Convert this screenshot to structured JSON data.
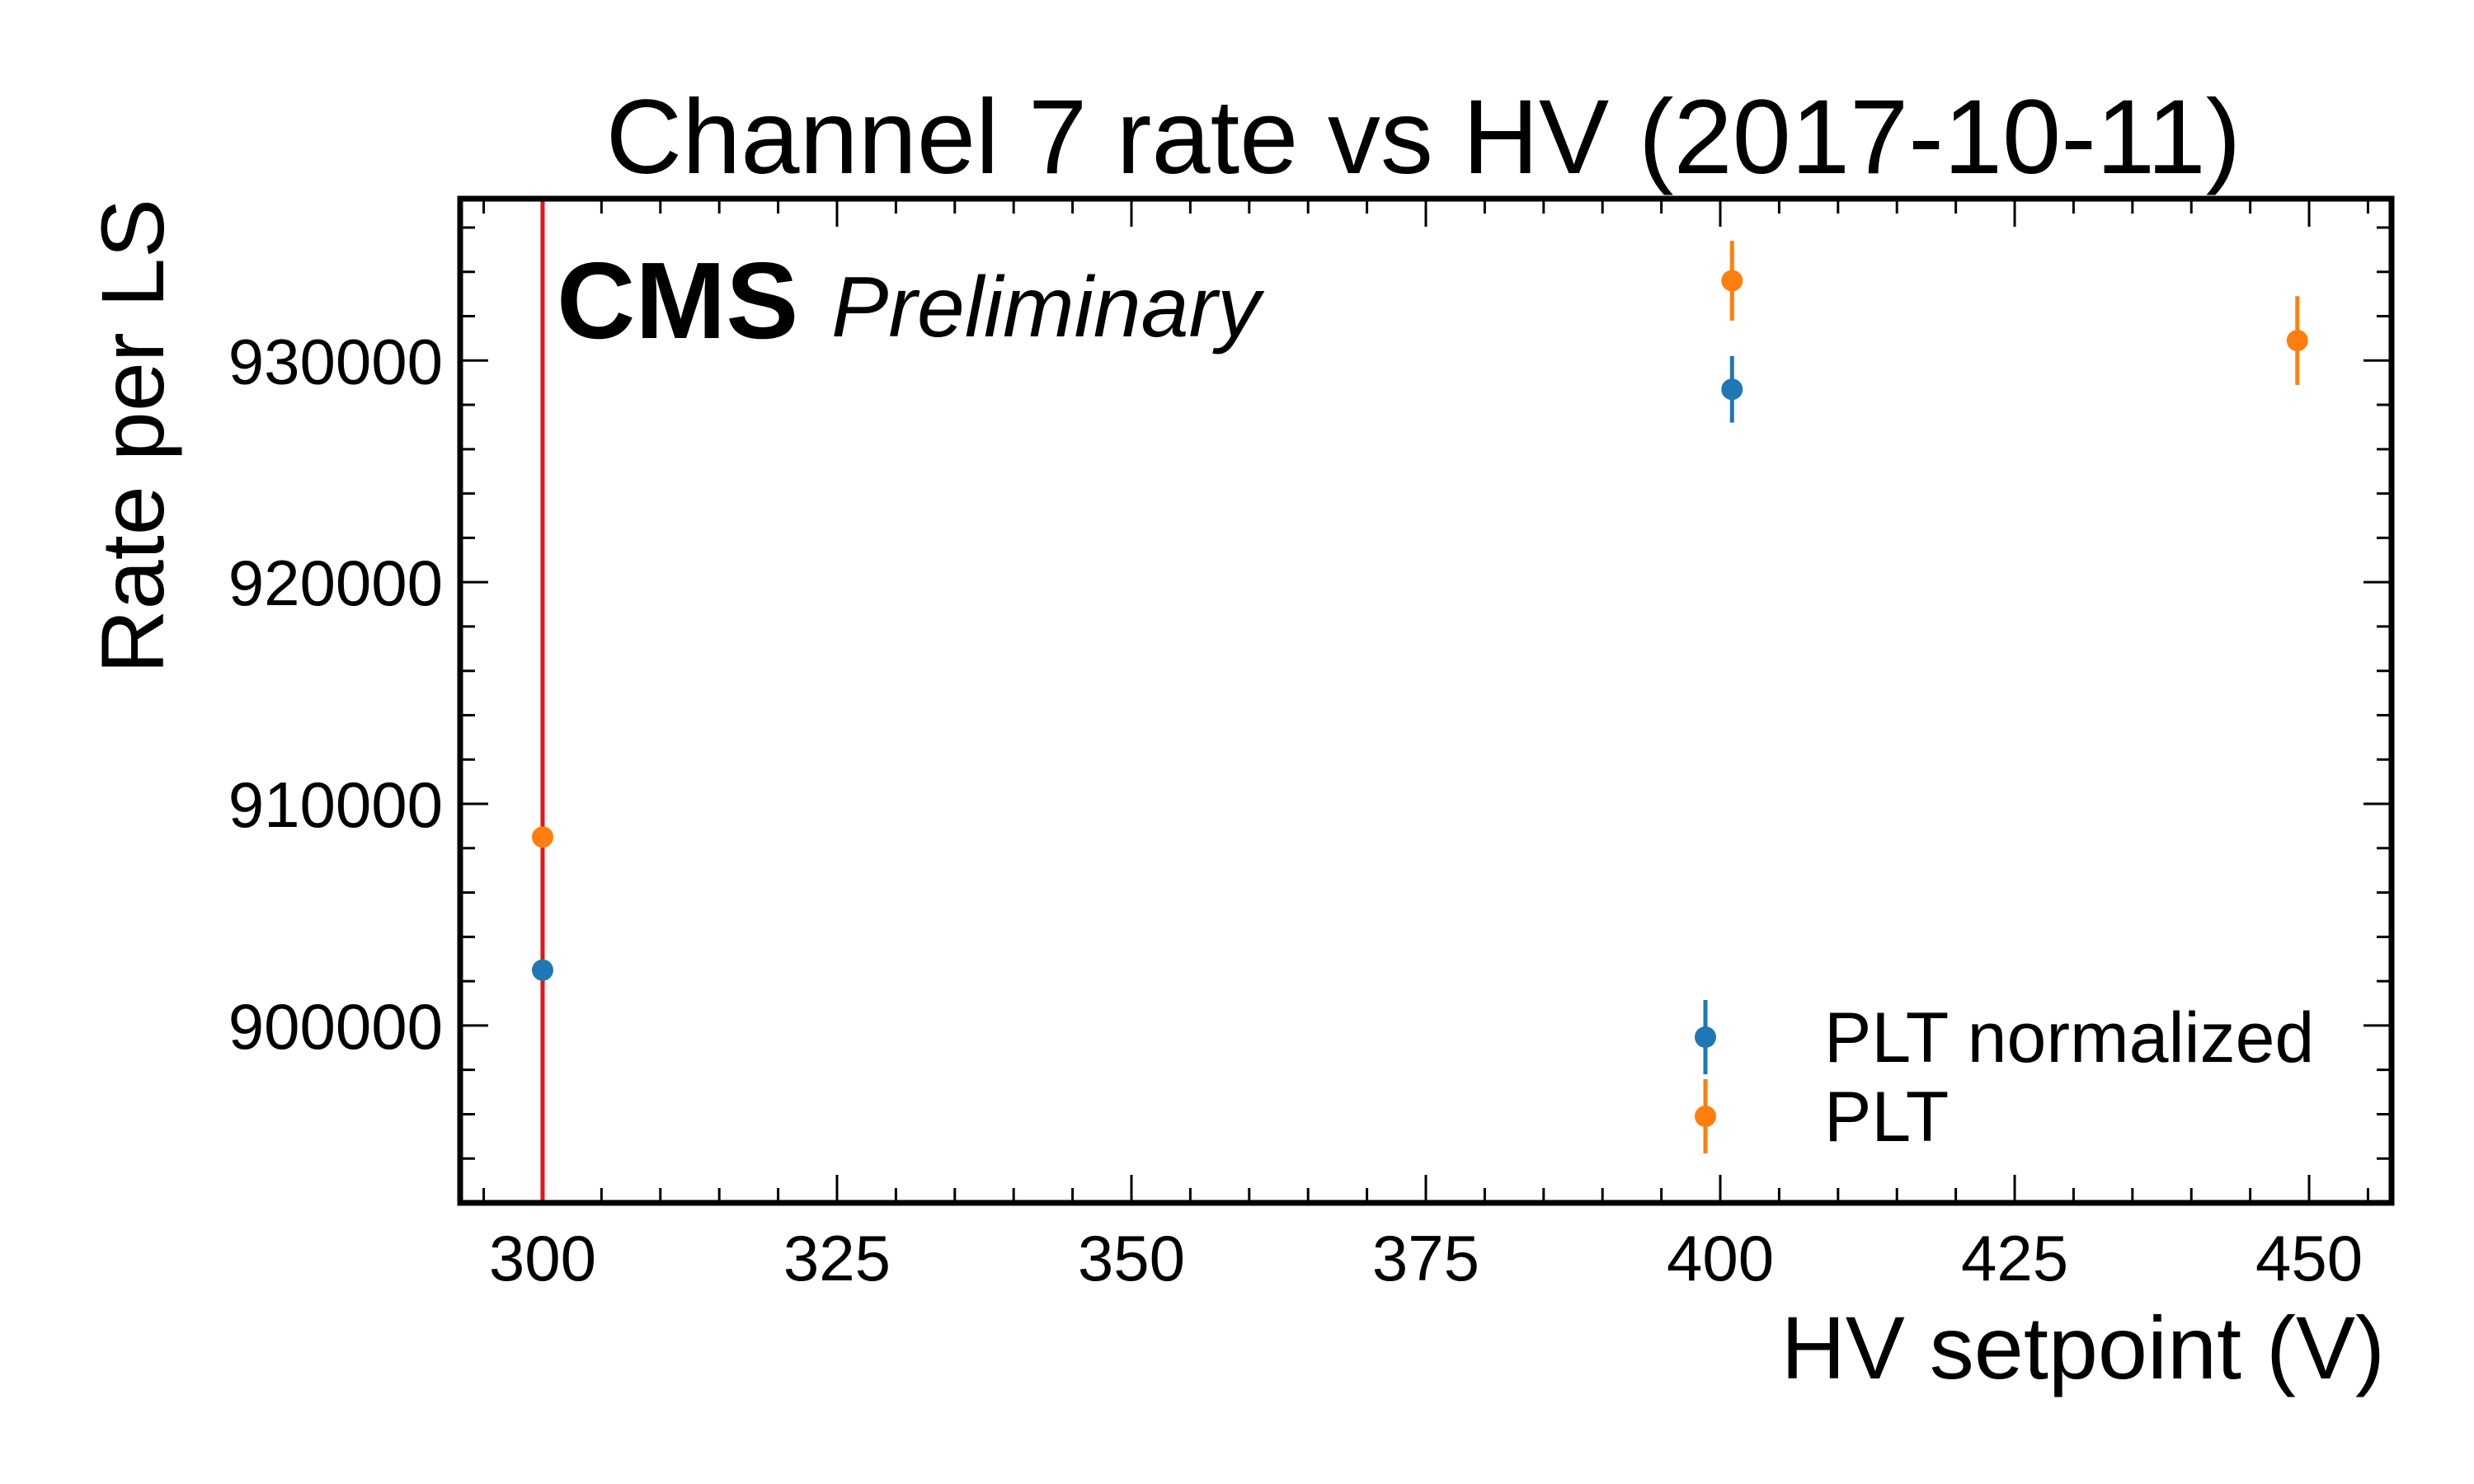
{
  "chart_data": {
    "type": "scatter",
    "title": "Channel 7 rate vs HV (2017-10-11)",
    "xlabel": "HV setpoint (V)",
    "ylabel": "Rate per LS",
    "xlim": [
      293,
      457
    ],
    "ylim": [
      892000,
      937300
    ],
    "xticks": [
      300,
      325,
      350,
      375,
      400,
      425,
      450
    ],
    "yticks": [
      900000,
      910000,
      920000,
      930000
    ],
    "x_minor_step": 5,
    "y_minor_step": 2000,
    "watermark": {
      "experiment": "CMS",
      "status": "Preliminary"
    },
    "legend_position": "lower-right",
    "vline": {
      "x": 300,
      "color": "#e8141b"
    },
    "series": [
      {
        "name": "PLT normalized",
        "color": "#1f77b4",
        "points": [
          {
            "x": 300,
            "y": 902500,
            "err": 0
          },
          {
            "x": 401,
            "y": 928700,
            "err": 1500
          }
        ]
      },
      {
        "name": "PLT",
        "color": "#ff7f0e",
        "points": [
          {
            "x": 300,
            "y": 908500,
            "err": 0
          },
          {
            "x": 401,
            "y": 933600,
            "err": 1800
          },
          {
            "x": 449,
            "y": 930900,
            "err": 2000
          }
        ]
      }
    ]
  }
}
